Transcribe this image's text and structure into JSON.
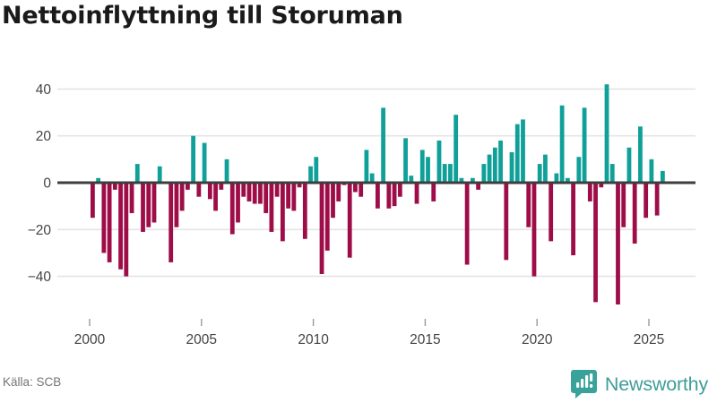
{
  "title": "Nettoinflyttning till Storuman",
  "source": "Källa: SCB",
  "branding": {
    "name": "Newsworthy",
    "color": "#3f9d97",
    "badge_color": "#39a39b",
    "icon": "bar-chart-speech-bubble"
  },
  "colors": {
    "positive_bar": "#0fa099",
    "negative_bar": "#9e0d48",
    "axis_line": "#3d3d3d",
    "gridline": "#e4e4e4",
    "tick_text": "#444444",
    "title_text": "#1a1a1a",
    "source_text": "#757575"
  },
  "chart_data": {
    "type": "bar",
    "title": "Nettoinflyttning till Storuman",
    "xlabel": "",
    "ylabel": "",
    "frequency": "quarterly",
    "period_start": "2000-Q1",
    "x_tick_labels": [
      "2000",
      "2005",
      "2010",
      "2015",
      "2020",
      "2025"
    ],
    "y_ticks": [
      40,
      20,
      0,
      -20,
      -40
    ],
    "y_tick_labels": [
      "40",
      "20",
      "0",
      "−20",
      "−40"
    ],
    "ylim": [
      -55,
      45
    ],
    "grid": "horizontal",
    "legend": "none",
    "series": [
      {
        "name": "Nettoinflyttning",
        "values": [
          -15,
          2,
          -30,
          -34,
          -3,
          -37,
          -40,
          -13,
          8,
          -21,
          -19,
          -17,
          7,
          0,
          -34,
          -19,
          -12,
          -3,
          20,
          -6,
          17,
          -7,
          -12,
          -3,
          10,
          -22,
          -17,
          -6,
          -8,
          -9,
          -9,
          -13,
          -21,
          -6,
          -25,
          -11,
          -12,
          -2,
          -24,
          7,
          11,
          -39,
          -29,
          -15,
          -8,
          -1,
          -32,
          -4,
          -6,
          14,
          4,
          -11,
          32,
          -11,
          -10,
          -6,
          19,
          3,
          -9,
          14,
          11,
          -8,
          18,
          8,
          8,
          29,
          2,
          -35,
          2,
          -3,
          8,
          12,
          15,
          18,
          -33,
          13,
          25,
          27,
          -19,
          -40,
          8,
          12,
          -25,
          4,
          33,
          2,
          -31,
          11,
          32,
          -8,
          -51,
          -2,
          42,
          8,
          -52,
          -19,
          15,
          -26,
          24,
          -15,
          10,
          -14,
          5
        ]
      }
    ]
  }
}
